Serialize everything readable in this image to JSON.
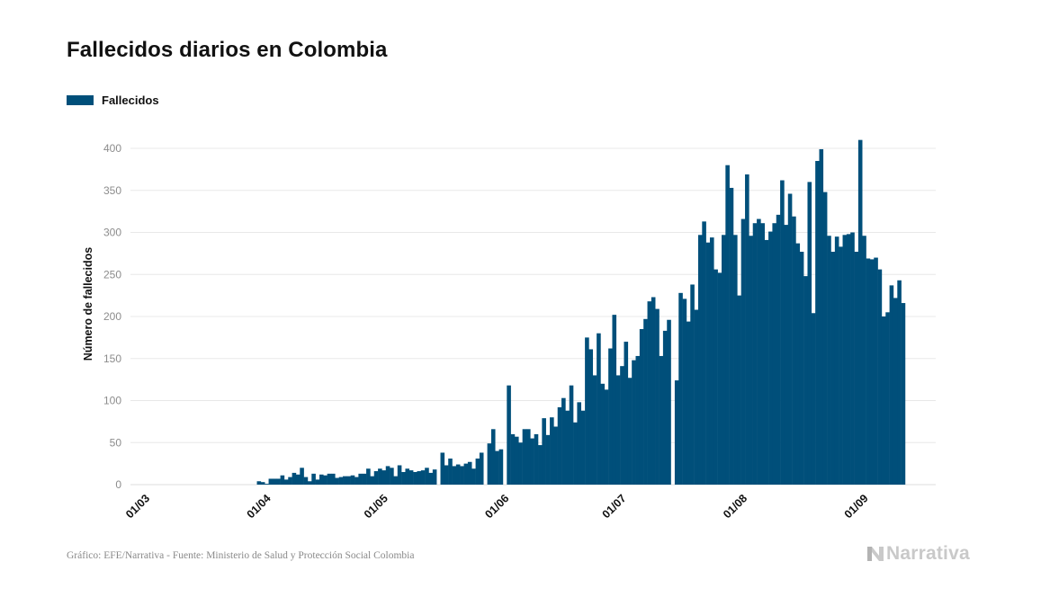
{
  "chart_data": {
    "type": "bar",
    "title": "Fallecidos diarios en Colombia",
    "ylabel": "Número de fallecidos",
    "xlabel": "",
    "ylim": [
      0,
      420
    ],
    "yticks": [
      0,
      50,
      100,
      150,
      200,
      250,
      300,
      350,
      400
    ],
    "grid": true,
    "legend_position": "top-left",
    "series_name": "Fallecidos",
    "start_date": "2020-03-01",
    "xtick_labels": [
      "01/03",
      "01/04",
      "01/05",
      "01/06",
      "01/07",
      "01/08",
      "01/09"
    ],
    "xtick_dates": [
      "2020-03-01",
      "2020-04-01",
      "2020-05-01",
      "2020-06-01",
      "2020-07-01",
      "2020-08-01",
      "2020-09-01"
    ],
    "values": [
      0,
      0,
      0,
      0,
      0,
      0,
      0,
      0,
      0,
      0,
      0,
      0,
      0,
      0,
      0,
      0,
      0,
      0,
      0,
      0,
      0,
      0,
      0,
      0,
      0,
      0,
      0,
      0,
      0,
      0,
      0,
      4,
      3,
      1,
      7,
      7,
      7,
      11,
      6,
      9,
      14,
      12,
      20,
      9,
      4,
      13,
      6,
      12,
      11,
      13,
      13,
      8,
      9,
      10,
      10,
      11,
      9,
      13,
      13,
      19,
      10,
      16,
      19,
      17,
      22,
      20,
      10,
      23,
      15,
      19,
      17,
      15,
      16,
      17,
      20,
      14,
      18,
      0,
      38,
      23,
      31,
      22,
      24,
      22,
      25,
      27,
      19,
      31,
      38,
      0,
      49,
      66,
      40,
      42,
      0,
      118,
      60,
      57,
      50,
      66,
      66,
      55,
      60,
      47,
      79,
      59,
      80,
      69,
      92,
      103,
      88,
      118,
      74,
      98,
      88,
      175,
      161,
      130,
      180,
      120,
      113,
      162,
      202,
      130,
      141,
      170,
      127,
      148,
      153,
      185,
      197,
      218,
      223,
      209,
      153,
      183,
      196,
      0,
      124,
      228,
      221,
      194,
      238,
      208,
      297,
      313,
      288,
      294,
      256,
      252,
      297,
      380,
      353,
      297,
      225,
      316,
      369,
      296,
      311,
      316,
      311,
      291,
      301,
      311,
      321,
      362,
      309,
      346,
      319,
      287,
      277,
      248,
      360,
      204,
      385,
      399,
      348,
      296,
      277,
      295,
      283,
      297,
      298,
      300,
      277,
      410,
      296,
      269,
      268,
      270,
      256,
      200,
      205,
      237,
      222,
      243,
      216
    ]
  },
  "footer": {
    "source": "Gráfico: EFE/Narrativa - Fuente: Ministerio de Salud y Protección Social Colombia",
    "brand": "Narrativa"
  },
  "colors": {
    "bar": "#004f7a",
    "grid": "#e8e8e8",
    "axis_text": "#8c8c8c",
    "title": "#111111"
  }
}
